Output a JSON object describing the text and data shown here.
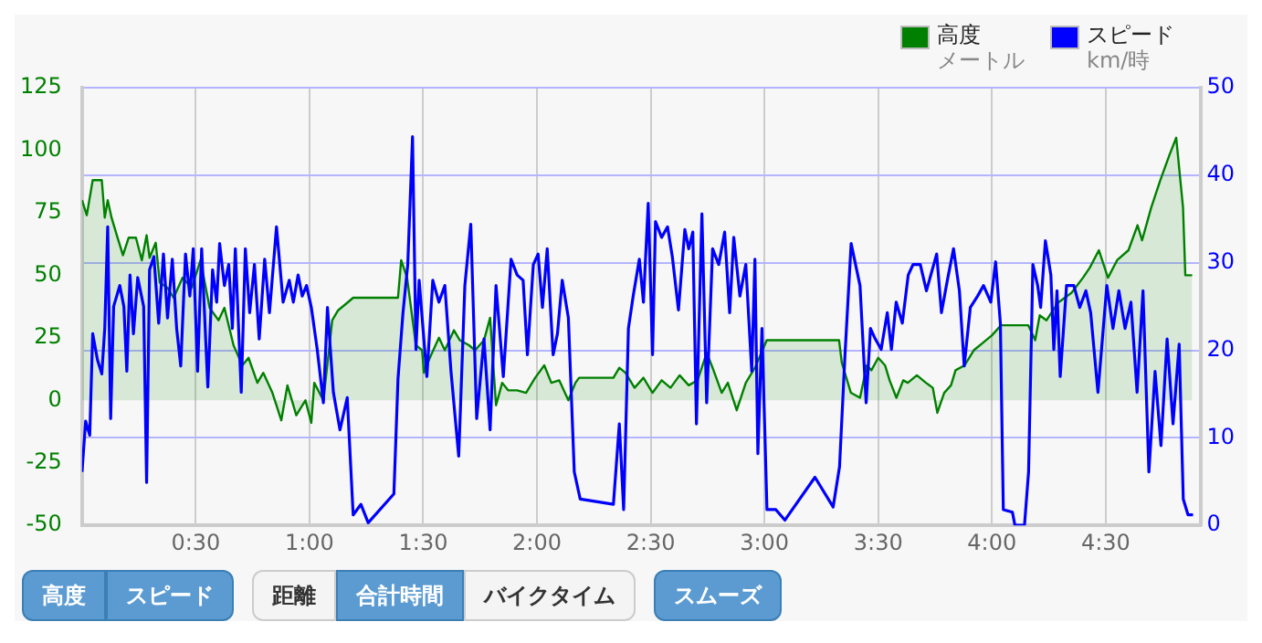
{
  "chart_data": {
    "type": "line",
    "xlim": [
      0,
      4.92
    ],
    "xticks": [
      {
        "value": 0.5,
        "label": "0:30"
      },
      {
        "value": 1,
        "label": "1:00"
      },
      {
        "value": 1.5,
        "label": "1:30"
      },
      {
        "value": 2,
        "label": "2:00"
      },
      {
        "value": 2.5,
        "label": "2:30"
      },
      {
        "value": 3,
        "label": "3:00"
      },
      {
        "value": 3.5,
        "label": "3:30"
      },
      {
        "value": 4,
        "label": "4:00"
      },
      {
        "value": 4.5,
        "label": "4:30"
      }
    ],
    "ylim": [
      -50,
      125
    ],
    "yticks": [
      -50,
      -25,
      0,
      25,
      50,
      75,
      100,
      125
    ],
    "y2lim": [
      0,
      50
    ],
    "y2ticks": [
      0,
      10,
      20,
      30,
      40,
      50
    ],
    "grid": true,
    "legend": "top right",
    "series": [
      {
        "name": "高度",
        "type": "area",
        "color": "#008000",
        "x": [
          0,
          0.021,
          0.047,
          0.087,
          0.1,
          0.113,
          0.13,
          0.153,
          0.18,
          0.205,
          0.237,
          0.263,
          0.284,
          0.297,
          0.324,
          0.342,
          0.376,
          0.403,
          0.442,
          0.482,
          0.521,
          0.561,
          0.6,
          0.626,
          0.666,
          0.705,
          0.732,
          0.771,
          0.797,
          0.837,
          0.876,
          0.903,
          0.942,
          0.982,
          1.008,
          1.021,
          1.061,
          1.1,
          1.126,
          1.166,
          1.192,
          1.389,
          1.403,
          1.429,
          1.468,
          1.495,
          1.503,
          1.529,
          1.569,
          1.595,
          1.635,
          1.661,
          1.701,
          1.728,
          1.767,
          1.794,
          1.82,
          1.847,
          1.873,
          1.913,
          1.952,
          1.992,
          2.032,
          2.063,
          2.098,
          2.138,
          2.169,
          2.185,
          2.336,
          2.362,
          2.389,
          2.429,
          2.468,
          2.508,
          2.548,
          2.587,
          2.627,
          2.667,
          2.706,
          2.746,
          2.772,
          2.812,
          2.839,
          2.878,
          2.918,
          2.958,
          3.01,
          3.328,
          3.34,
          3.38,
          3.42,
          3.45,
          3.47,
          3.5,
          3.53,
          3.55,
          3.58,
          3.61,
          3.63,
          3.67,
          3.71,
          3.74,
          3.76,
          3.79,
          3.82,
          3.84,
          3.88,
          3.92,
          3.96,
          4.0,
          4.04,
          4.16,
          4.19,
          4.21,
          4.24,
          4.29,
          4.35,
          4.4,
          4.43,
          4.47,
          4.51,
          4.55,
          4.6,
          4.64,
          4.66,
          4.7,
          4.74,
          4.78,
          4.81,
          4.84,
          4.85,
          4.88
        ],
        "values": [
          80,
          74,
          88,
          88,
          73,
          80,
          73,
          66,
          58,
          65,
          65,
          56,
          66,
          57,
          63,
          47,
          45,
          41,
          49,
          45,
          56,
          37,
          32,
          37,
          22,
          14,
          17,
          7,
          11,
          3,
          -8,
          6,
          -6,
          0,
          -9,
          7,
          0,
          32,
          36,
          39,
          41,
          41,
          56,
          49,
          22,
          20,
          11,
          17,
          25,
          20,
          28,
          24,
          22,
          20,
          24,
          33,
          -2,
          7,
          4,
          4,
          3,
          9,
          14,
          7,
          8,
          0,
          7,
          9,
          9,
          13,
          11,
          5,
          9,
          3,
          8,
          5,
          10,
          6,
          8,
          19,
          13,
          3,
          7,
          -4,
          7,
          13,
          24,
          24,
          15,
          3,
          1,
          14,
          12,
          17,
          14,
          8,
          1,
          8,
          7,
          10,
          7,
          5,
          -5,
          3,
          6,
          12,
          14,
          20,
          23,
          26,
          30,
          30,
          24,
          34,
          32,
          39,
          43,
          49,
          53,
          60,
          49,
          56,
          60,
          70,
          64,
          77,
          88,
          98,
          105,
          77,
          50,
          50
        ]
      },
      {
        "name": "スピード",
        "type": "line",
        "axis": "y2",
        "color": "#0000ff",
        "x": [
          0,
          0.016,
          0.034,
          0.047,
          0.068,
          0.087,
          0.1,
          0.113,
          0.126,
          0.139,
          0.166,
          0.184,
          0.197,
          0.211,
          0.226,
          0.245,
          0.271,
          0.284,
          0.297,
          0.316,
          0.337,
          0.358,
          0.376,
          0.397,
          0.416,
          0.434,
          0.455,
          0.474,
          0.489,
          0.508,
          0.526,
          0.553,
          0.574,
          0.592,
          0.605,
          0.626,
          0.645,
          0.661,
          0.674,
          0.7,
          0.718,
          0.737,
          0.758,
          0.779,
          0.803,
          0.824,
          0.855,
          0.884,
          0.911,
          0.929,
          0.95,
          0.968,
          0.987,
          1.008,
          1.034,
          1.061,
          1.079,
          1.105,
          1.134,
          1.166,
          1.192,
          1.226,
          1.258,
          1.371,
          1.389,
          1.411,
          1.432,
          1.453,
          1.468,
          1.482,
          1.516,
          1.542,
          1.569,
          1.595,
          1.622,
          1.656,
          1.683,
          1.709,
          1.735,
          1.767,
          1.794,
          1.82,
          1.852,
          1.886,
          1.913,
          1.939,
          1.958,
          1.984,
          2.005,
          2.024,
          2.045,
          2.071,
          2.09,
          2.111,
          2.138,
          2.164,
          2.19,
          2.336,
          2.362,
          2.381,
          2.402,
          2.423,
          2.45,
          2.468,
          2.489,
          2.508,
          2.521,
          2.548,
          2.574,
          2.595,
          2.622,
          2.65,
          2.667,
          2.685,
          2.701,
          2.725,
          2.746,
          2.772,
          2.799,
          2.825,
          2.847,
          2.865,
          2.892,
          2.918,
          2.944,
          2.958,
          2.971,
          2.989,
          3.011,
          3.05,
          3.09,
          3.222,
          3.302,
          3.33,
          3.354,
          3.381,
          3.42,
          3.447,
          3.466,
          3.487,
          3.513,
          3.54,
          3.558,
          3.579,
          3.606,
          3.632,
          3.653,
          3.685,
          3.712,
          3.757,
          3.778,
          3.804,
          3.831,
          3.857,
          3.878,
          3.905,
          3.937,
          3.963,
          3.995,
          4.016,
          4.037,
          4.05,
          4.09,
          4.101,
          4.143,
          4.161,
          4.18,
          4.201,
          4.214,
          4.235,
          4.259,
          4.272,
          4.286,
          4.3,
          4.328,
          4.36,
          4.386,
          4.413,
          4.434,
          4.466,
          4.505,
          4.532,
          4.558,
          4.585,
          4.611,
          4.638,
          4.664,
          4.69,
          4.717,
          4.743,
          4.77,
          4.796,
          4.823,
          4.841,
          4.862,
          4.884
        ],
        "values": [
          6.1,
          11.9,
          10.3,
          21.9,
          18.9,
          17.3,
          22.5,
          34.1,
          12.2,
          25,
          27.4,
          25,
          17.6,
          28.6,
          21.9,
          28.3,
          25,
          4.9,
          29.2,
          30.7,
          23.1,
          31,
          23.7,
          30.4,
          22.5,
          18.2,
          31,
          26.2,
          31.6,
          17.6,
          31.6,
          15.8,
          29.2,
          25.5,
          32.2,
          27.4,
          29.8,
          22.5,
          31.6,
          15.2,
          31.6,
          24.3,
          29.8,
          21.3,
          30.4,
          24.3,
          34.1,
          25.5,
          28,
          25.5,
          28.6,
          26.2,
          27.4,
          24.9,
          20.1,
          14,
          24.9,
          15.2,
          10.9,
          14.6,
          1.2,
          2.4,
          0.3,
          3.6,
          16.7,
          24.3,
          29.8,
          44.4,
          20.1,
          28,
          17,
          28,
          25.5,
          27.4,
          17.6,
          7.9,
          27.4,
          34.4,
          12.2,
          21.3,
          10.9,
          27.4,
          17,
          30.4,
          28.6,
          28,
          19.5,
          29.8,
          31,
          24.9,
          31.6,
          19.5,
          21.9,
          28,
          23.7,
          6.1,
          3,
          2.4,
          11.6,
          1.8,
          22.5,
          26.2,
          30.4,
          25.5,
          36.8,
          19.5,
          34.7,
          32.9,
          34.1,
          30.7,
          24.6,
          33.8,
          31.6,
          33.5,
          11.6,
          35.6,
          14,
          31.6,
          29.8,
          33.5,
          24.3,
          32.9,
          26.2,
          29.8,
          17.6,
          30.4,
          8.2,
          22.5,
          1.8,
          1.8,
          0.6,
          5.5,
          2.1,
          6.7,
          19.5,
          32.2,
          27.4,
          14,
          22.5,
          21.3,
          20.1,
          24.3,
          20.1,
          25.5,
          23.1,
          28.6,
          29.8,
          29.8,
          26.8,
          31,
          24.3,
          28,
          31.6,
          26.8,
          18.2,
          24.9,
          26.2,
          27.4,
          25.5,
          30.1,
          23.1,
          1.8,
          1.5,
          0,
          0,
          6.1,
          29.8,
          27.4,
          24.9,
          32.5,
          28.6,
          20.1,
          26.8,
          17,
          27.4,
          27.4,
          24.9,
          26.8,
          24.3,
          15.2,
          27.4,
          22.5,
          26.8,
          22.5,
          25.5,
          15.2,
          26.8,
          6.1,
          17.6,
          9.1,
          21.3,
          11.6,
          20.7,
          3,
          1.2,
          1.2
        ]
      }
    ],
    "annotations": [
      "メートル",
      "km/時",
      "高度",
      "スピード",
      "距離",
      "合計時間",
      "バイクタイム",
      "スムーズ"
    ]
  }
}
